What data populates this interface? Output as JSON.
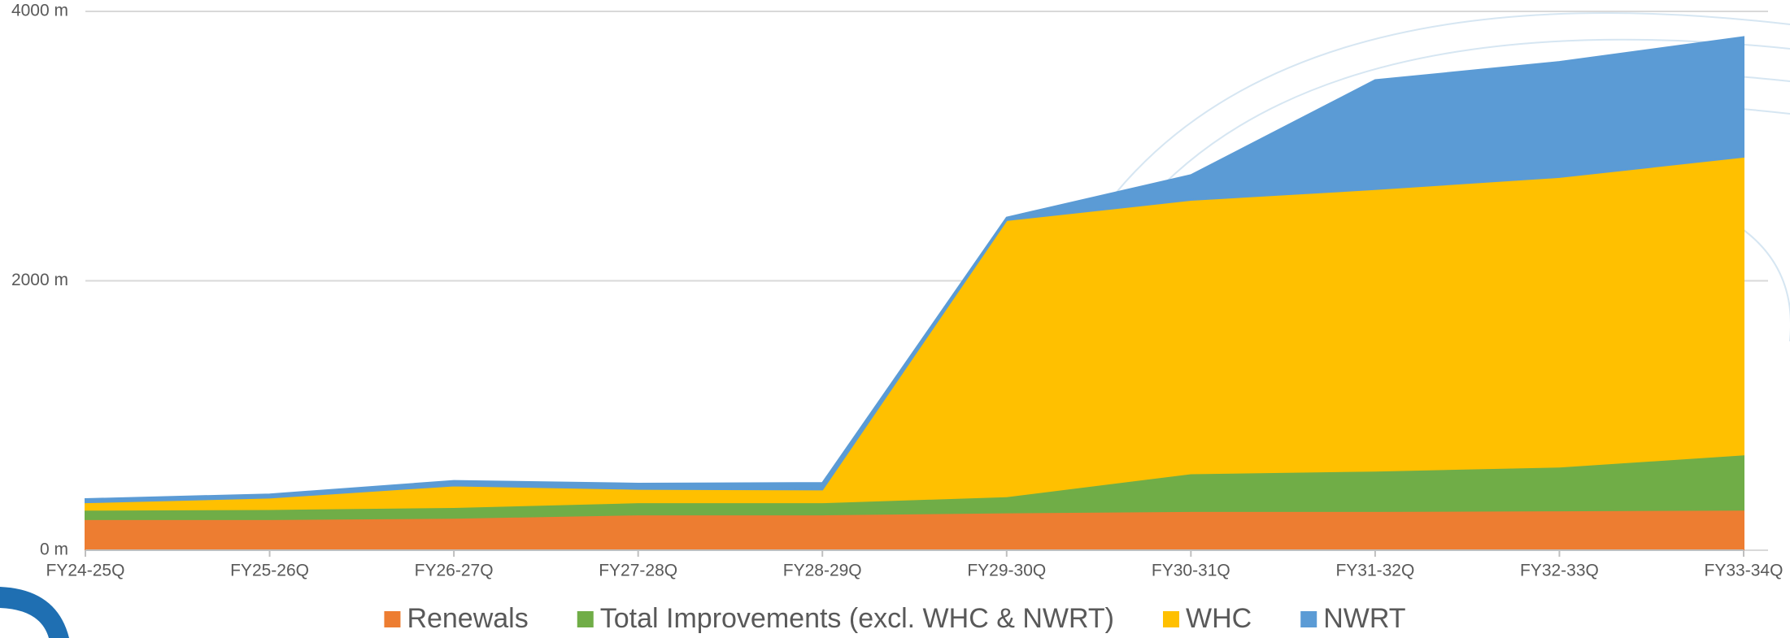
{
  "chart_data": {
    "type": "stacked_area",
    "categories": [
      "FY24-25Q",
      "FY25-26Q",
      "FY26-27Q",
      "FY27-28Q",
      "FY28-29Q",
      "FY29-30Q",
      "FY30-31Q",
      "FY31-32Q",
      "FY32-33Q",
      "FY33-34Q"
    ],
    "series": [
      {
        "name": "Renewals",
        "color": "#ed7d31",
        "values": [
          230,
          230,
          240,
          265,
          265,
          280,
          290,
          290,
          295,
          300
        ]
      },
      {
        "name": "Total Improvements (excl. WHC & NWRT)",
        "color": "#70ad47",
        "values": [
          70,
          75,
          80,
          90,
          90,
          120,
          280,
          300,
          325,
          410
        ]
      },
      {
        "name": "WHC",
        "color": "#ffc000",
        "values": [
          55,
          85,
          160,
          100,
          95,
          2050,
          2030,
          2090,
          2150,
          2210
        ]
      },
      {
        "name": "NWRT",
        "color": "#5b9bd5",
        "values": [
          25,
          25,
          35,
          40,
          50,
          20,
          185,
          810,
          855,
          890
        ]
      }
    ],
    "ylim": [
      0,
      4000
    ],
    "yticks": [
      {
        "value": 0,
        "label": "0 m"
      },
      {
        "value": 2000,
        "label": "2000 m"
      },
      {
        "value": 4000,
        "label": "4000 m"
      }
    ],
    "grid": true
  }
}
